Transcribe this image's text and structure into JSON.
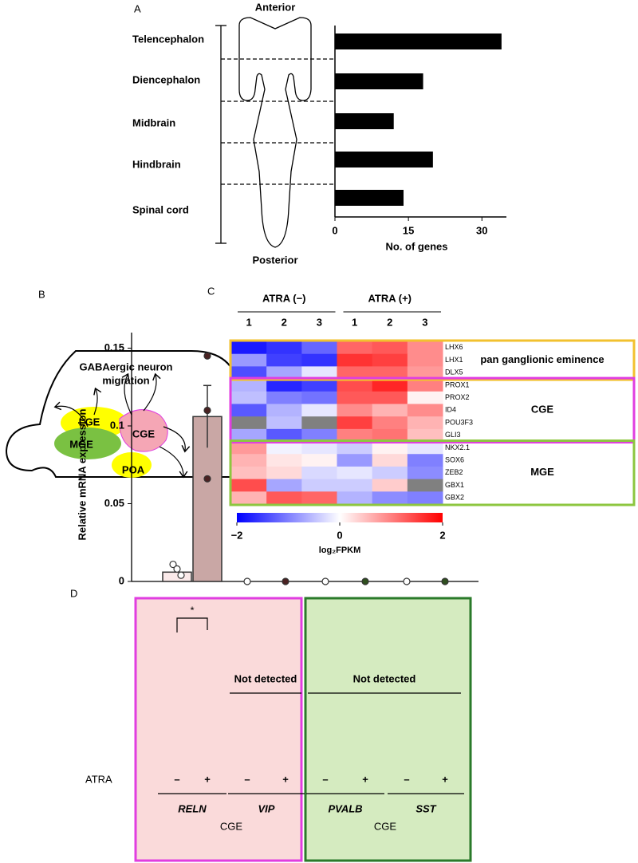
{
  "panel_labels": [
    "A",
    "B",
    "C",
    "D"
  ],
  "diagram": {
    "title_lines": [
      "GABAergic neuron",
      "migration"
    ],
    "regions": [
      "LGE",
      "MGE",
      "CGE",
      "POA"
    ]
  },
  "chart_data": [
    {
      "type": "hbar",
      "categories": [
        "Telencephalon",
        "Diencephalon",
        "Midbrain",
        "Hindbrain",
        "Spinal cord"
      ],
      "values": [
        34,
        18,
        12,
        20,
        14
      ],
      "color": "#000000",
      "xlim": [
        0,
        35
      ],
      "xticks": [
        0,
        15,
        30
      ],
      "xlabel": "No. of genes",
      "annotations": [
        "Anterior",
        "Posterior"
      ]
    },
    {
      "type": "heatmap",
      "column_groups": [
        "ATRA (−)",
        "ATRA (+)"
      ],
      "columns": [
        "1",
        "2",
        "3",
        "1",
        "2",
        "3"
      ],
      "rows": [
        "LHX6",
        "LHX1",
        "DLX5",
        "PROX1",
        "PROX2",
        "ID4",
        "POU3F3",
        "GLI3",
        "NKX2.1",
        "SOX6",
        "ZEB2",
        "GBX1",
        "GBX2"
      ],
      "values": [
        [
          -1.8,
          -1.6,
          -1.2,
          1.2,
          1.3,
          0.9
        ],
        [
          -0.8,
          -1.5,
          -1.6,
          1.6,
          1.5,
          0.9
        ],
        [
          -1.4,
          -0.7,
          -0.2,
          1.2,
          1.2,
          0.8
        ],
        [
          -0.6,
          -1.7,
          -1.5,
          1.4,
          1.7,
          1.0
        ],
        [
          -0.5,
          -1.0,
          -1.1,
          1.3,
          1.3,
          0.1
        ],
        [
          -1.3,
          -0.6,
          -0.2,
          0.9,
          0.6,
          0.9
        ],
        [
          null,
          -0.5,
          null,
          1.5,
          1.0,
          0.6
        ],
        [
          -0.7,
          -1.3,
          -1.0,
          1.0,
          1.1,
          0.5
        ],
        [
          0.8,
          -0.1,
          -0.2,
          -0.4,
          0.1,
          -0.2
        ],
        [
          0.6,
          0.2,
          0.1,
          -0.8,
          0.3,
          -1.0
        ],
        [
          0.5,
          0.3,
          -0.3,
          -0.2,
          -0.4,
          -0.9
        ],
        [
          1.4,
          -0.7,
          -0.4,
          -0.4,
          0.4,
          null
        ],
        [
          0.6,
          1.3,
          1.2,
          -0.6,
          -0.9,
          -1.0
        ]
      ],
      "na_color": "#808080",
      "row_groups": [
        {
          "name": "pan ganglionic eminence",
          "size": 3,
          "color": "#f2c12e"
        },
        {
          "name": "CGE",
          "size": 5,
          "color": "#e03ee0"
        },
        {
          "name": "MGE",
          "size": 5,
          "color": "#8dc63f"
        }
      ],
      "colorbar": {
        "colors": [
          "#0000ff",
          "#ffffff",
          "#ff0000"
        ],
        "lim": [
          -2,
          2
        ],
        "ticks": [
          {
            "value": -2,
            "label": "−2"
          },
          0,
          2
        ],
        "label": "log₂FPKM"
      }
    },
    {
      "type": "bar",
      "ylabel": "Relative mRNA expression",
      "ylim": [
        0,
        0.16
      ],
      "yticks": [
        0,
        0.05,
        0.1,
        0.15
      ],
      "row_label": "ATRA",
      "categories": [
        "–",
        "+",
        "–",
        "+",
        "–",
        "+",
        "–",
        "+"
      ],
      "values": [
        0.006,
        0.106,
        0,
        0,
        0,
        0,
        0,
        0
      ],
      "errors": [
        null,
        0.02,
        null,
        null,
        null,
        null,
        null,
        null
      ],
      "points": [
        [
          0.011,
          0.008,
          0.004
        ],
        [
          0.145,
          0.11,
          0.066
        ],
        [
          0
        ],
        [
          0
        ],
        [
          0
        ],
        [
          0
        ],
        [
          0
        ],
        [
          0
        ]
      ],
      "bar_colors": [
        "#fbeaea",
        "#c9a7a5",
        "#fbeaea",
        "#c9a7a5",
        "#eaf5e0",
        "#9fbf88",
        "#eaf5e0",
        "#9fbf88"
      ],
      "point_colors": [
        "#ffffff",
        "#4a2222",
        "#ffffff",
        "#4a2222",
        "#ffffff",
        "#2f4f1f",
        "#ffffff",
        "#2f4f1f"
      ],
      "genes": [
        {
          "name": "RELN",
          "span": [
            0,
            1
          ]
        },
        {
          "name": "VIP",
          "span": [
            2,
            3
          ]
        },
        {
          "name": "PVALB",
          "span": [
            4,
            5
          ]
        },
        {
          "name": "SST",
          "span": [
            6,
            7
          ]
        }
      ],
      "regions": [
        {
          "name": "CGE",
          "span": [
            0,
            3
          ],
          "fill": "#fadada",
          "stroke": "#e03ee0"
        },
        {
          "name": "CGE",
          "span": [
            4,
            7
          ],
          "fill": "#d5ebc0",
          "stroke": "#2a7a2a"
        }
      ],
      "significance": {
        "label": "*",
        "pair": [
          0,
          1
        ]
      },
      "annotations": [
        {
          "text": "Not detected",
          "span": [
            2,
            3
          ]
        },
        {
          "text": "Not detected",
          "span": [
            4,
            7
          ]
        }
      ]
    }
  ]
}
